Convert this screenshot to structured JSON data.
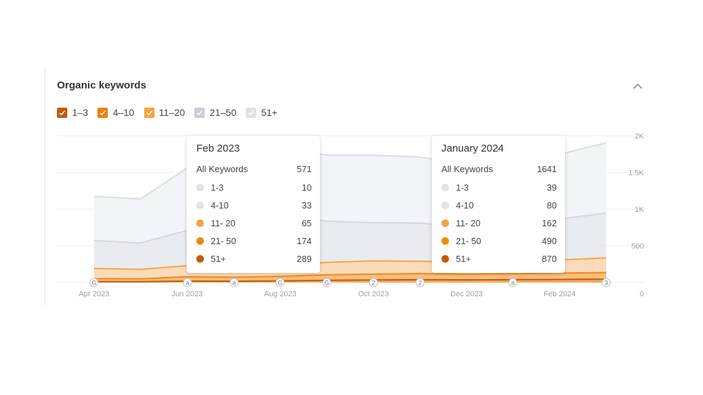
{
  "widget": {
    "title": "Organic keywords"
  },
  "legend": [
    {
      "label": "1–3",
      "checked": true,
      "color": "#c45b05"
    },
    {
      "label": "4–10",
      "checked": true,
      "color": "#f07f0a"
    },
    {
      "label": "11–20",
      "checked": true,
      "color": "#f6a443"
    },
    {
      "label": "21–50",
      "checked": false,
      "color": "#c9ced6"
    },
    {
      "label": "51+",
      "checked": false,
      "color": "#dfe2e7"
    }
  ],
  "tooltips": [
    {
      "heading": "Feb 2023",
      "all_label": "All Keywords",
      "all_value": "571",
      "rows": [
        {
          "label": "1-3",
          "value": "10",
          "color": "#dfe3ea"
        },
        {
          "label": "4-10",
          "value": "33",
          "color": "#dfe3ea"
        },
        {
          "label": "11- 20",
          "value": "65",
          "color": "#f6a443"
        },
        {
          "label": "21- 50",
          "value": "174",
          "color": "#f08a0c"
        },
        {
          "label": "51+",
          "value": "289",
          "color": "#c45b05"
        }
      ]
    },
    {
      "heading": "January 2024",
      "all_label": "All Keywords",
      "all_value": "1641",
      "rows": [
        {
          "label": "1-3",
          "value": "39",
          "color": "#dfe3ea"
        },
        {
          "label": "4-10",
          "value": "80",
          "color": "#dfe3ea"
        },
        {
          "label": "11- 20",
          "value": "162",
          "color": "#f6a443"
        },
        {
          "label": "21- 50",
          "value": "490",
          "color": "#f08a0c"
        },
        {
          "label": "51+",
          "value": "870",
          "color": "#c45b05"
        }
      ]
    }
  ],
  "chart_data": {
    "type": "area",
    "x": [
      "Apr 2023",
      "May 2023",
      "Jun 2023",
      "Jul 2023",
      "Aug 2023",
      "Sep 2023",
      "Oct 2023",
      "Nov 2023",
      "Dec 2023",
      "Jan 2024",
      "Feb 2024",
      "Mar 2024"
    ],
    "x_tick_labels": [
      "Apr 2023",
      "Jun 2023",
      "Aug 2023",
      "Oct 2023",
      "Dec 2023",
      "Feb 2024"
    ],
    "y_tick_labels": [
      "0",
      "500",
      "1K",
      "1.5K",
      "2K"
    ],
    "ylim": [
      0,
      2000
    ],
    "y_axis_side": "right",
    "grid": true,
    "stacked": true,
    "series": [
      {
        "name": "1–3",
        "color": "#c45b05",
        "values": [
          12,
          12,
          20,
          18,
          22,
          30,
          35,
          38,
          36,
          39,
          42,
          45
        ]
      },
      {
        "name": "4–10",
        "color": "#f07f0a",
        "values": [
          40,
          38,
          60,
          55,
          62,
          75,
          80,
          82,
          80,
          80,
          85,
          90
        ]
      },
      {
        "name": "11–20",
        "color": "#f6a443",
        "values": [
          140,
          130,
          150,
          140,
          150,
          170,
          180,
          170,
          165,
          162,
          180,
          200
        ]
      },
      {
        "name": "21–50",
        "color": "#c9ced6",
        "values": [
          380,
          360,
          480,
          600,
          700,
          560,
          520,
          520,
          480,
          490,
          560,
          610
        ]
      },
      {
        "name": "51+",
        "color": "#dfe2e7",
        "values": [
          600,
          600,
          850,
          880,
          900,
          900,
          920,
          900,
          850,
          870,
          880,
          960
        ]
      }
    ],
    "event_markers": [
      {
        "label": "G"
      },
      {
        "label": "a"
      },
      {
        "label": "a"
      },
      {
        "label": "G"
      },
      {
        "label": "G"
      },
      {
        "label": "2"
      },
      {
        "label": "2"
      },
      {
        "label": "a"
      },
      {
        "label": "3"
      }
    ]
  }
}
